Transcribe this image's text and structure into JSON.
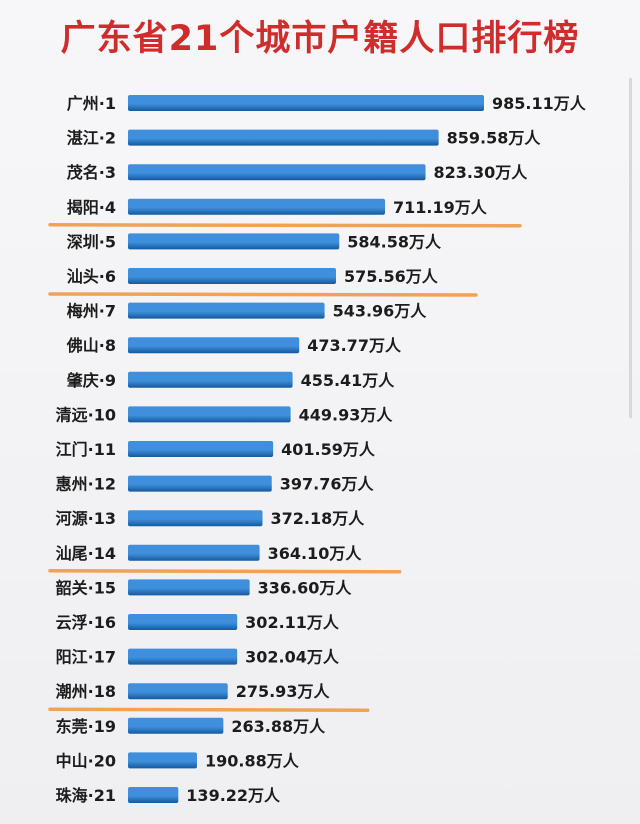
{
  "title": "广东省21个城市户籍人口排行榜",
  "colors": {
    "title": "#cf2c2c",
    "bar_light": "#3f8fdc",
    "bar_dark": "#14599e",
    "underline": "#f0a257"
  },
  "chart_data": {
    "type": "bar",
    "orientation": "horizontal",
    "title": "广东省21个城市户籍人口排行榜",
    "categories": [
      "广州·1",
      "湛江·2",
      "茂名·3",
      "揭阳·4",
      "深圳·5",
      "汕头·6",
      "梅州·7",
      "佛山·8",
      "肇庆·9",
      "清远·10",
      "江门·11",
      "惠州·12",
      "河源·13",
      "汕尾·14",
      "韶关·15",
      "云浮·16",
      "阳江·17",
      "潮州·18",
      "东莞·19",
      "中山·20",
      "珠海·21"
    ],
    "values": [
      985.11,
      859.58,
      823.3,
      711.19,
      584.58,
      575.56,
      543.96,
      473.77,
      455.41,
      449.93,
      401.59,
      397.76,
      372.18,
      364.1,
      336.6,
      302.11,
      302.04,
      275.93,
      263.88,
      190.88,
      139.22
    ],
    "value_labels": [
      "985.11万人",
      "859.58万人",
      "823.30万人",
      "711.19万人",
      "584.58万人",
      "575.56万人",
      "543.96万人",
      "473.77万人",
      "455.41万人",
      "449.93万人",
      "401.59万人",
      "397.76万人",
      "372.18万人",
      "364.10万人",
      "336.60万人",
      "302.11万人",
      "302.04万人",
      "275.93万人",
      "263.88万人",
      "190.88万人",
      "139.22万人"
    ],
    "unit": "万人",
    "highlighted_underlines": [
      "揭阳·4",
      "汕头·6",
      "汕尾·14",
      "潮州·18"
    ],
    "grid": false,
    "legend": "none"
  }
}
